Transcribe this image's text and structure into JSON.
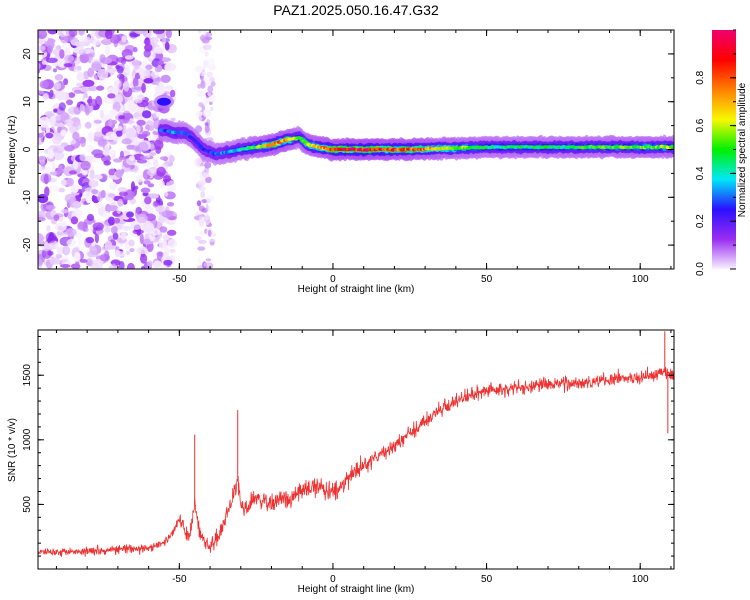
{
  "title": "PAZ1.2025.050.16.47.G32",
  "chart_data": [
    {
      "type": "heatmap",
      "xlabel": "Height of straight line (km)",
      "ylabel": "Frequency (Hz)",
      "xlim": [
        -96,
        111
      ],
      "ylim": [
        -25,
        25
      ],
      "xticks": [
        -50,
        0,
        50,
        100
      ],
      "yticks": [
        -20,
        -10,
        0,
        10,
        20
      ],
      "colorbar": {
        "label": "Normalized spectral amplitude",
        "range": [
          0.0,
          1.0
        ],
        "ticks": [
          0.0,
          0.2,
          0.4,
          0.6,
          0.8
        ],
        "colormap": [
          "#f8f0ff",
          "#9a2cf0",
          "#2a10ff",
          "#00e8f8",
          "#00f000",
          "#f8f800",
          "#ff8000",
          "#ff0000",
          "#f00070"
        ]
      },
      "ridge": {
        "x": [
          -54,
          -52,
          -48,
          -45,
          -42,
          -38,
          -34,
          -30,
          -25,
          -20,
          -15,
          -11,
          -8,
          -5,
          0,
          10,
          25,
          50,
          80,
          100,
          111
        ],
        "frequency": [
          4,
          3.5,
          3.5,
          2,
          0,
          -1,
          -0.5,
          0,
          0.5,
          1,
          2,
          2.5,
          1,
          0.5,
          0,
          0,
          0,
          0.5,
          0.5,
          0.5,
          0.5
        ],
        "amplitude": [
          0.3,
          0.35,
          0.3,
          0.25,
          0.25,
          0.3,
          0.35,
          0.4,
          0.55,
          0.75,
          0.8,
          0.45,
          0.7,
          0.7,
          0.9,
          0.95,
          0.85,
          0.45,
          0.5,
          0.55,
          0.6
        ]
      },
      "spot": {
        "x": -55,
        "frequency": 10,
        "amplitude": 0.25
      }
    },
    {
      "type": "line",
      "xlabel": "Height of straight line (km)",
      "ylabel": "SNR (10 * v/v)",
      "xlim": [
        -96,
        111
      ],
      "ylim": [
        0,
        1850
      ],
      "xticks": [
        -50,
        0,
        50,
        100
      ],
      "yticks": [
        500,
        1000,
        1500
      ],
      "color": "#f03030",
      "series": [
        {
          "x": [
            -96,
            -80,
            -60,
            -55,
            -52,
            -50,
            -48,
            -47,
            -45,
            -43,
            -40,
            -37,
            -35,
            -33,
            -31,
            -30,
            -28,
            -25,
            -20,
            -15,
            -10,
            -5,
            0,
            10,
            20,
            30,
            40,
            50,
            60,
            70,
            80,
            90,
            100,
            105,
            108,
            111
          ],
          "y": [
            130,
            140,
            160,
            200,
            280,
            400,
            300,
            250,
            500,
            250,
            180,
            250,
            400,
            500,
            700,
            500,
            450,
            550,
            500,
            550,
            600,
            650,
            600,
            800,
            950,
            1150,
            1300,
            1380,
            1400,
            1430,
            1440,
            1470,
            1480,
            1500,
            1550,
            1480
          ],
          "spikes": [
            {
              "x": -45,
              "y": 1040
            },
            {
              "x": -31,
              "y": 1230
            },
            {
              "x": 108,
              "y": 1840
            },
            {
              "x": 109,
              "y": 1050
            }
          ]
        }
      ]
    }
  ]
}
